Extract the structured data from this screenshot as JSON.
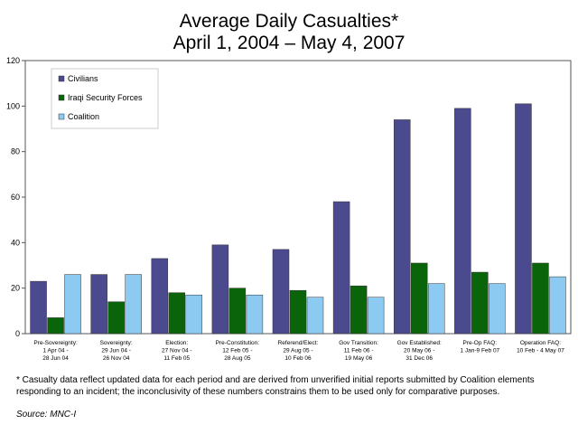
{
  "chart_data": {
    "type": "bar",
    "title": "Average Daily Casualties*",
    "subtitle": "April 1, 2004 – May 4, 2007",
    "xlabel": "",
    "ylabel": "",
    "ylim": [
      0,
      120
    ],
    "yticks": [
      0,
      20,
      40,
      60,
      80,
      100,
      120
    ],
    "grid": false,
    "legend_position": "top-left",
    "categories": [
      [
        "Pre-Sovereignty:",
        "1 Apr 04 -",
        "28 Jun 04"
      ],
      [
        "Sovereignty:",
        "29 Jun 04 -",
        "26 Nov 04"
      ],
      [
        "Election:",
        "27 Nov 04 -",
        "11 Feb 05"
      ],
      [
        "Pre-Constitution:",
        "12 Feb 05 -",
        "28 Aug 05"
      ],
      [
        "Referend/Elect:",
        "29 Aug 05 -",
        "10 Feb 06"
      ],
      [
        "Gov Transition:",
        "11 Feb 06 -",
        "19 May 06"
      ],
      [
        "Gov Established:",
        "20 May 06 -",
        "31 Dec 06"
      ],
      [
        "Pre-Op FAQ:",
        "1 Jan-9 Feb 07"
      ],
      [
        "Operation FAQ:",
        "10 Feb - 4 May 07"
      ]
    ],
    "series": [
      {
        "name": "Civilians",
        "color": "#4b4a8e",
        "values": [
          23,
          26,
          33,
          39,
          37,
          58,
          94,
          99,
          101
        ]
      },
      {
        "name": "Iraqi Security Forces",
        "color": "#0a640a",
        "values": [
          7,
          14,
          18,
          20,
          19,
          21,
          31,
          27,
          31
        ]
      },
      {
        "name": "Coalition",
        "color": "#8ccaf2",
        "values": [
          26,
          26,
          17,
          17,
          16,
          16,
          22,
          22,
          25
        ]
      }
    ]
  },
  "footnote": "* Casualty data reflect updated data for each period and are derived from unverified initial reports submitted by Coalition elements responding to an incident; the inconclusivity of these numbers constrains them to be used only for comparative purposes.",
  "source": "Source: MNC-I"
}
